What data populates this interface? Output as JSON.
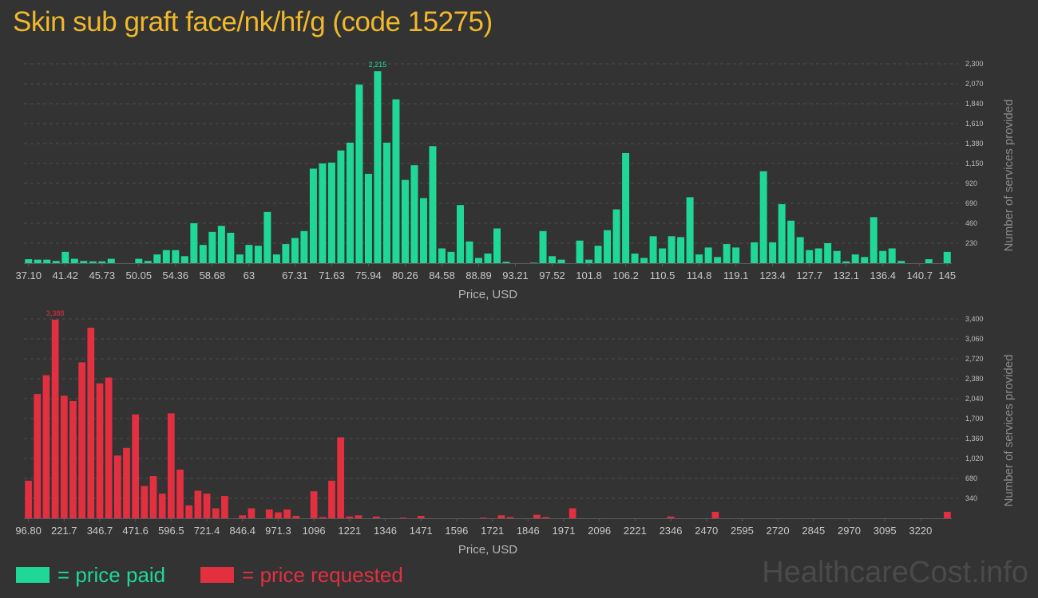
{
  "title": "Skin sub graft face/nk/hf/g (code 15275)",
  "legend": {
    "paid": "= price paid",
    "requested": "= price requested"
  },
  "watermark": "HealthcareCost.info",
  "colors": {
    "paid": "#1fd898",
    "requested": "#e23040",
    "title": "#f0b82b"
  },
  "chart_data": [
    {
      "type": "bar",
      "series_name": "price paid",
      "color": "#1fd898",
      "xlabel": "Price, USD",
      "ylabel": "Number of services provided",
      "ylim": [
        0,
        2300
      ],
      "yticks": [
        "230",
        "460",
        "690",
        "920",
        "1,150",
        "1,380",
        "1,610",
        "1,840",
        "2,070",
        "2,300"
      ],
      "xticks": [
        {
          "label": "37.10",
          "bin": 0
        },
        {
          "label": "41.42",
          "bin": 4
        },
        {
          "label": "45.73",
          "bin": 8
        },
        {
          "label": "50.05",
          "bin": 12
        },
        {
          "label": "54.36",
          "bin": 16
        },
        {
          "label": "58.68",
          "bin": 20
        },
        {
          "label": "63",
          "bin": 24
        },
        {
          "label": "67.31",
          "bin": 29
        },
        {
          "label": "71.63",
          "bin": 33
        },
        {
          "label": "75.94",
          "bin": 37
        },
        {
          "label": "80.26",
          "bin": 41
        },
        {
          "label": "84.58",
          "bin": 45
        },
        {
          "label": "88.89",
          "bin": 49
        },
        {
          "label": "93.21",
          "bin": 53
        },
        {
          "label": "97.52",
          "bin": 57
        },
        {
          "label": "101.8",
          "bin": 61
        },
        {
          "label": "106.2",
          "bin": 65
        },
        {
          "label": "110.5",
          "bin": 69
        },
        {
          "label": "114.8",
          "bin": 73
        },
        {
          "label": "119.1",
          "bin": 77
        },
        {
          "label": "123.4",
          "bin": 81
        },
        {
          "label": "127.7",
          "bin": 85
        },
        {
          "label": "132.1",
          "bin": 89
        },
        {
          "label": "136.4",
          "bin": 93
        },
        {
          "label": "140.7",
          "bin": 97
        },
        {
          "label": "145",
          "bin": 100
        }
      ],
      "peak_label": "2,215",
      "values": [
        45,
        40,
        40,
        25,
        130,
        50,
        25,
        20,
        20,
        50,
        0,
        0,
        50,
        25,
        100,
        150,
        150,
        80,
        460,
        210,
        360,
        430,
        350,
        100,
        210,
        200,
        590,
        100,
        220,
        290,
        370,
        1090,
        1150,
        1160,
        1300,
        1390,
        2060,
        1030,
        2215,
        1390,
        1890,
        960,
        1130,
        750,
        1350,
        170,
        130,
        670,
        250,
        60,
        110,
        400,
        15,
        0,
        0,
        5,
        370,
        80,
        40,
        0,
        260,
        40,
        200,
        380,
        620,
        1270,
        110,
        60,
        310,
        170,
        310,
        300,
        760,
        100,
        180,
        70,
        220,
        180,
        0,
        240,
        1060,
        240,
        680,
        490,
        300,
        150,
        170,
        230,
        140,
        20,
        100,
        70,
        530,
        140,
        170,
        25,
        0,
        0,
        45,
        0,
        130
      ]
    },
    {
      "type": "bar",
      "series_name": "price requested",
      "color": "#e23040",
      "xlabel": "Price, USD",
      "ylabel": "Number of services provided",
      "ylim": [
        0,
        3400
      ],
      "yticks": [
        "340",
        "680",
        "1,020",
        "1,360",
        "1,700",
        "2,040",
        "2,380",
        "2,720",
        "3,060",
        "3,400"
      ],
      "xticks": [
        {
          "label": "96.80",
          "bin": 0
        },
        {
          "label": "221.7",
          "bin": 4
        },
        {
          "label": "346.7",
          "bin": 8
        },
        {
          "label": "471.6",
          "bin": 12
        },
        {
          "label": "596.5",
          "bin": 16
        },
        {
          "label": "721.4",
          "bin": 20
        },
        {
          "label": "846.4",
          "bin": 24
        },
        {
          "label": "971.3",
          "bin": 28
        },
        {
          "label": "1096",
          "bin": 32
        },
        {
          "label": "1221",
          "bin": 36
        },
        {
          "label": "1346",
          "bin": 40
        },
        {
          "label": "1471",
          "bin": 44
        },
        {
          "label": "1596",
          "bin": 48
        },
        {
          "label": "1721",
          "bin": 52
        },
        {
          "label": "1846",
          "bin": 56
        },
        {
          "label": "1971",
          "bin": 60
        },
        {
          "label": "2096",
          "bin": 64
        },
        {
          "label": "2221",
          "bin": 68
        },
        {
          "label": "2346",
          "bin": 72
        },
        {
          "label": "2470",
          "bin": 76
        },
        {
          "label": "2595",
          "bin": 80
        },
        {
          "label": "2720",
          "bin": 84
        },
        {
          "label": "2845",
          "bin": 88
        },
        {
          "label": "2970",
          "bin": 92
        },
        {
          "label": "3095",
          "bin": 96
        },
        {
          "label": "3220",
          "bin": 100
        }
      ],
      "peak_label": "3,388",
      "values": [
        640,
        2120,
        2440,
        3388,
        2090,
        2000,
        2660,
        3250,
        2300,
        2400,
        1070,
        1200,
        1770,
        550,
        720,
        420,
        1790,
        830,
        220,
        470,
        420,
        170,
        380,
        0,
        50,
        170,
        0,
        150,
        100,
        150,
        40,
        0,
        460,
        20,
        640,
        1380,
        30,
        50,
        0,
        30,
        0,
        0,
        10,
        0,
        40,
        0,
        0,
        0,
        0,
        0,
        0,
        10,
        0,
        50,
        20,
        0,
        0,
        60,
        20,
        0,
        0,
        170,
        0,
        0,
        0,
        0,
        0,
        0,
        0,
        0,
        0,
        0,
        30,
        0,
        0,
        0,
        0,
        110,
        0,
        0,
        0,
        0,
        0,
        0,
        0,
        0,
        0,
        0,
        0,
        0,
        0,
        0,
        0,
        0,
        0,
        0,
        0,
        0,
        0,
        0,
        0,
        0,
        0,
        110
      ]
    }
  ]
}
